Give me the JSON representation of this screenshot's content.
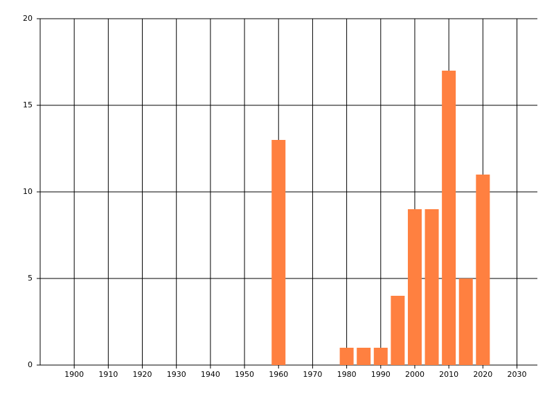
{
  "chart_data": {
    "type": "bar",
    "x": [
      1960,
      1980,
      1985,
      1990,
      1995,
      2000,
      2005,
      2010,
      2015,
      2020
    ],
    "values": [
      13,
      1,
      1,
      1,
      4,
      9,
      9,
      17,
      5,
      11
    ],
    "color": "#ff8040",
    "xlim": [
      1890,
      2036
    ],
    "xticks": [
      1900,
      1910,
      1920,
      1930,
      1940,
      1950,
      1960,
      1970,
      1980,
      1990,
      2000,
      2010,
      2020,
      2030
    ],
    "ylim": [
      0,
      20
    ],
    "yticks": [
      0,
      5,
      10,
      15,
      20
    ],
    "grid": true
  }
}
